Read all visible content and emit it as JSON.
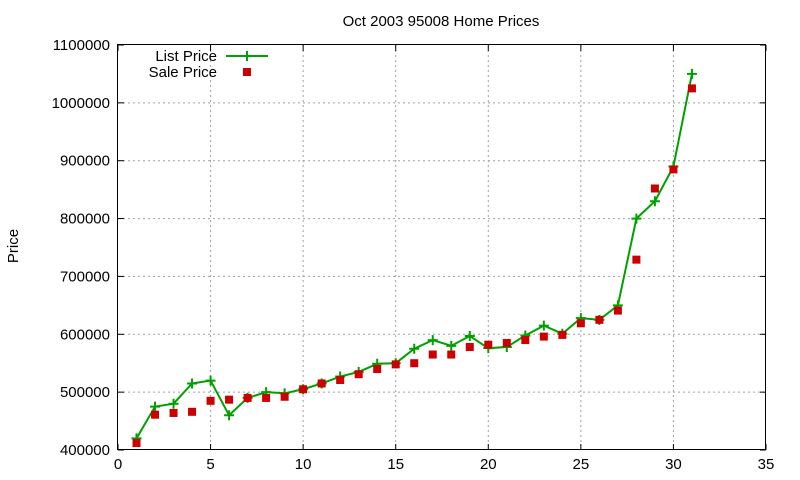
{
  "chart_data": {
    "type": "line",
    "title": "Oct 2003 95008 Home Prices",
    "xlabel": "",
    "ylabel": "Price",
    "xlim": [
      0,
      35
    ],
    "ylim": [
      400000,
      1100000
    ],
    "x_ticks": [
      0,
      5,
      10,
      15,
      20,
      25,
      30,
      35
    ],
    "y_ticks": [
      400000,
      500000,
      600000,
      700000,
      800000,
      900000,
      1000000,
      1100000
    ],
    "grid": true,
    "legend_position": "top-left",
    "series": [
      {
        "name": "List Price",
        "style": "line-plus",
        "color": "#00a000",
        "x": [
          1,
          2,
          3,
          4,
          5,
          6,
          7,
          8,
          9,
          10,
          11,
          12,
          13,
          14,
          15,
          16,
          17,
          18,
          19,
          20,
          21,
          22,
          23,
          24,
          25,
          26,
          27,
          28,
          29,
          30,
          31
        ],
        "y": [
          420000,
          475000,
          480000,
          515000,
          520000,
          460000,
          490000,
          500000,
          498000,
          505000,
          515000,
          527000,
          535000,
          549000,
          550000,
          575000,
          590000,
          580000,
          597000,
          576000,
          578000,
          598000,
          615000,
          601000,
          628000,
          625000,
          650000,
          800000,
          830000,
          890000,
          1050000
        ]
      },
      {
        "name": "Sale Price",
        "style": "square-markers",
        "color": "#cc0000",
        "x": [
          1,
          2,
          3,
          4,
          5,
          6,
          7,
          8,
          9,
          10,
          11,
          12,
          13,
          14,
          15,
          16,
          17,
          18,
          19,
          20,
          21,
          22,
          23,
          24,
          25,
          26,
          27,
          28,
          29,
          30,
          31
        ],
        "y": [
          412000,
          461000,
          464000,
          466000,
          485000,
          487000,
          490000,
          490000,
          492000,
          505000,
          515000,
          521000,
          531000,
          540000,
          548000,
          550000,
          565000,
          565000,
          578000,
          582000,
          585000,
          590000,
          596000,
          599000,
          619000,
          625000,
          641000,
          729000,
          852000,
          885000,
          1025000
        ]
      }
    ]
  }
}
